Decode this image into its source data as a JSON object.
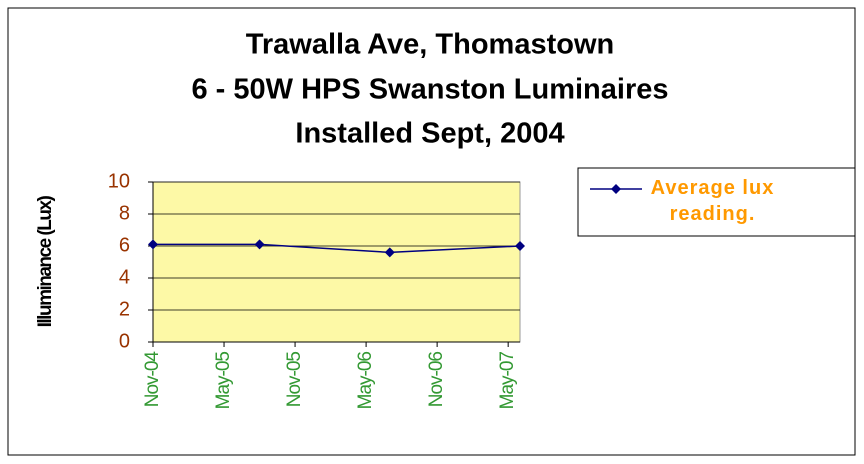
{
  "chart_data": {
    "type": "line",
    "title": [
      "Trawalla Ave, Thomastown",
      "6 - 50W HPS Swanston Luminaires",
      "Installed Sept, 2004"
    ],
    "y_label": "Illuminance (Lux)",
    "x": [
      "2004-11",
      "2005-08",
      "2006-07",
      "2007-06"
    ],
    "series": [
      {
        "name": "Average lux reading.",
        "color": "#000080",
        "values": [
          6.1,
          6.1,
          5.6,
          6.0
        ]
      }
    ],
    "xlim": [
      "2004-11",
      "2007-06"
    ],
    "xticks": [
      {
        "value": "2004-11",
        "label": "Nov-04"
      },
      {
        "value": "2005-05",
        "label": "May-05"
      },
      {
        "value": "2005-11",
        "label": "Nov-05"
      },
      {
        "value": "2006-05",
        "label": "May-06"
      },
      {
        "value": "2006-11",
        "label": "Nov-06"
      },
      {
        "value": "2007-05",
        "label": "May-07"
      }
    ],
    "ylim": [
      0,
      10
    ],
    "yticks": [
      0,
      2,
      4,
      6,
      8,
      10
    ],
    "grid": true,
    "legend": "right"
  }
}
